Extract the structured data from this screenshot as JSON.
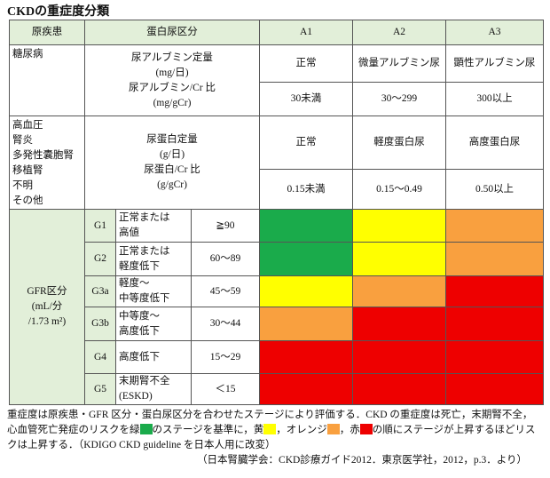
{
  "title": "CKDの重症度分類",
  "table": {
    "header": [
      "原疾患",
      "蛋白尿区分",
      "A1",
      "A2",
      "A3"
    ],
    "header_color": "#e2efd9",
    "protein_blocks": [
      {
        "disease": [
          "糖尿病"
        ],
        "measure": [
          "尿アルブミン定量",
          "(mg/日)",
          "尿アルブミン/Cr 比",
          "(mg/gCr)"
        ],
        "stages": [
          "正常",
          "微量アルブミン尿",
          "顕性アルブミン尿"
        ],
        "ranges": [
          "30未満",
          "30～299",
          "300以上"
        ]
      },
      {
        "disease": [
          "高血圧",
          "腎炎",
          "多発性囊胞腎",
          "移植腎",
          "不明",
          "その他"
        ],
        "measure": [
          "尿蛋白定量",
          "(g/日)",
          "尿蛋白/Cr 比",
          "(g/gCr)"
        ],
        "stages": [
          "正常",
          "軽度蛋白尿",
          "高度蛋白尿"
        ],
        "ranges": [
          "0.15未満",
          "0.15～0.49",
          "0.50以上"
        ]
      }
    ],
    "gfr_label": [
      "GFR区分",
      "(mL/分",
      "/1.73 m²)"
    ],
    "gfr_rows": [
      {
        "grade": "G1",
        "description": [
          "正常または",
          "高値"
        ],
        "range": "≧90",
        "colors": [
          "#1aab4b",
          "#ffff00",
          "#f9a03f"
        ]
      },
      {
        "grade": "G2",
        "description": [
          "正常または",
          "軽度低下"
        ],
        "range": "60～89",
        "colors": [
          "#1aab4b",
          "#ffff00",
          "#f9a03f"
        ]
      },
      {
        "grade": "G3a",
        "description": [
          "軽度～",
          "中等度低下"
        ],
        "range": "45～59",
        "colors": [
          "#ffff00",
          "#f9a03f",
          "#ee0000"
        ]
      },
      {
        "grade": "G3b",
        "description": [
          "中等度～",
          "高度低下"
        ],
        "range": "30～44",
        "colors": [
          "#f9a03f",
          "#ee0000",
          "#ee0000"
        ]
      },
      {
        "grade": "G4",
        "description": [
          "高度低下"
        ],
        "range": "15～29",
        "colors": [
          "#ee0000",
          "#ee0000",
          "#ee0000"
        ]
      },
      {
        "grade": "G5",
        "description": [
          "末期腎不全",
          "(ESKD)"
        ],
        "range": "＜15",
        "colors": [
          "#ee0000",
          "#ee0000",
          "#ee0000"
        ]
      }
    ]
  },
  "caption": {
    "segments": [
      "重症度は原疾患・GFR 区分・蛋白尿区分を合わせたステージにより評価する．CKD の重症度は死亡，末期腎不全，心血管死亡発症のリスクを緑",
      "のステージを基準に，黄",
      "，オレンジ",
      "，赤",
      "の順にステージが上昇するほどリスクは上昇する．（KDIGO CKD guideline を日本人用に改変）"
    ],
    "swatches": [
      "#1aab4b",
      "#ffff00",
      "#f9a03f",
      "#ee0000"
    ],
    "source": "（日本腎臓学会：CKD診療ガイド2012．東京医学社，2012，p.3．より）"
  }
}
